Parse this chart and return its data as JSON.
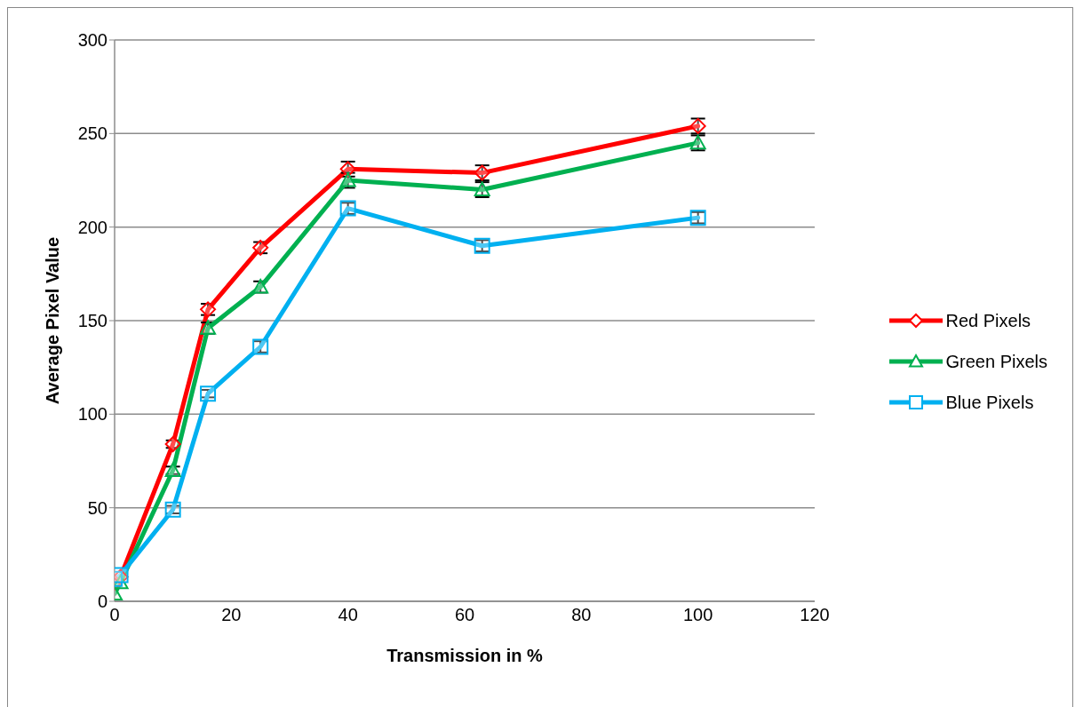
{
  "chart_data": {
    "type": "line",
    "xlabel": "Transmission in %",
    "ylabel": "Average Pixel Value",
    "x": [
      0,
      1,
      10,
      16,
      25,
      40,
      63,
      100
    ],
    "series": [
      {
        "name": "Red Pixels",
        "color": "#ff0000",
        "marker": "diamond",
        "values": [
          10,
          13,
          84,
          156,
          189,
          231,
          229,
          254
        ],
        "errors": [
          null,
          null,
          2,
          3,
          3,
          4,
          4,
          4
        ]
      },
      {
        "name": "Green Pixels",
        "color": "#00b050",
        "marker": "triangle",
        "values": [
          4,
          10,
          70,
          146,
          168,
          225,
          220,
          245
        ],
        "errors": [
          null,
          null,
          2,
          3,
          3,
          4,
          4,
          4
        ]
      },
      {
        "name": "Blue Pixels",
        "color": "#00b0f0",
        "marker": "square",
        "values": [
          12,
          14,
          49,
          111,
          136,
          210,
          190,
          205
        ],
        "errors": [
          null,
          null,
          2,
          2,
          3,
          3,
          3,
          3
        ]
      }
    ],
    "xlim": [
      0,
      120
    ],
    "xticks": [
      0,
      20,
      40,
      60,
      80,
      100,
      120
    ],
    "ylim": [
      0,
      300
    ],
    "yticks": [
      0,
      50,
      100,
      150,
      200,
      250,
      300
    ],
    "grid": "y",
    "legend": "right",
    "line_style": "solid"
  }
}
